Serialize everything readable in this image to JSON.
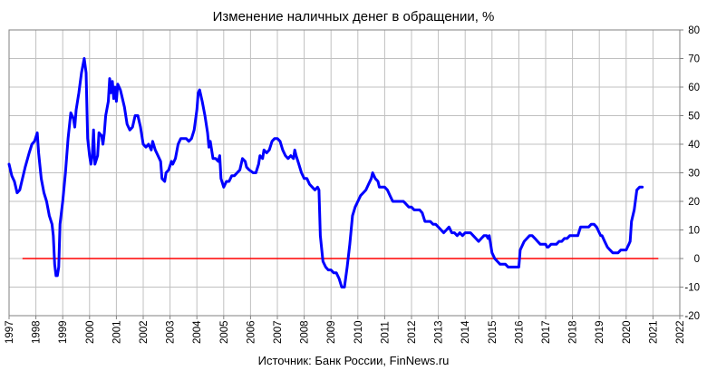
{
  "chart_data": {
    "type": "line",
    "title": "Изменение наличных денег в обращении, %",
    "source": "Источник: Банк России, FinNews.ru",
    "xlabel": "",
    "ylabel": "",
    "x_ticks": [
      "1997",
      "1998",
      "1999",
      "2000",
      "2001",
      "2002",
      "2003",
      "2004",
      "2005",
      "2006",
      "2007",
      "2008",
      "2009",
      "2010",
      "2011",
      "2012",
      "2013",
      "2014",
      "2015",
      "2016",
      "2017",
      "2018",
      "2019",
      "2020",
      "2021",
      "2022"
    ],
    "xlim": [
      1997,
      2022
    ],
    "ylim": [
      -20,
      80
    ],
    "y_ticks": [
      80,
      70,
      60,
      50,
      40,
      30,
      20,
      10,
      0,
      -10,
      -20
    ],
    "grid": true,
    "legend": "none",
    "colors": {
      "series": "#0000ff",
      "zero_line": "#ff0000",
      "grid": "#c0c0c0"
    },
    "series": [
      {
        "points": [
          [
            1997.0,
            33
          ],
          [
            1997.1,
            29
          ],
          [
            1997.2,
            27
          ],
          [
            1997.3,
            23
          ],
          [
            1997.4,
            24
          ],
          [
            1997.5,
            28
          ],
          [
            1997.6,
            32
          ],
          [
            1997.75,
            37
          ],
          [
            1997.85,
            40
          ],
          [
            1997.95,
            41
          ],
          [
            1998.05,
            44
          ],
          [
            1998.1,
            37
          ],
          [
            1998.2,
            28
          ],
          [
            1998.3,
            23
          ],
          [
            1998.4,
            20
          ],
          [
            1998.5,
            15
          ],
          [
            1998.6,
            12
          ],
          [
            1998.65,
            8
          ],
          [
            1998.7,
            -2
          ],
          [
            1998.75,
            -6
          ],
          [
            1998.8,
            -6
          ],
          [
            1998.85,
            -3
          ],
          [
            1998.9,
            12
          ],
          [
            1999.0,
            20
          ],
          [
            1999.1,
            30
          ],
          [
            1999.2,
            42
          ],
          [
            1999.3,
            51
          ],
          [
            1999.4,
            49
          ],
          [
            1999.45,
            46
          ],
          [
            1999.5,
            52
          ],
          [
            1999.6,
            58
          ],
          [
            1999.7,
            65
          ],
          [
            1999.8,
            70
          ],
          [
            1999.87,
            65
          ],
          [
            1999.93,
            42
          ],
          [
            2000.0,
            36
          ],
          [
            2000.05,
            33
          ],
          [
            2000.1,
            36
          ],
          [
            2000.15,
            45
          ],
          [
            2000.2,
            33
          ],
          [
            2000.3,
            36
          ],
          [
            2000.35,
            44
          ],
          [
            2000.45,
            43
          ],
          [
            2000.5,
            40
          ],
          [
            2000.55,
            44
          ],
          [
            2000.6,
            50
          ],
          [
            2000.7,
            55
          ],
          [
            2000.75,
            63
          ],
          [
            2000.8,
            58
          ],
          [
            2000.85,
            62
          ],
          [
            2000.9,
            56
          ],
          [
            2000.95,
            60
          ],
          [
            2001.0,
            55
          ],
          [
            2001.05,
            61
          ],
          [
            2001.15,
            59
          ],
          [
            2001.2,
            57
          ],
          [
            2001.3,
            53
          ],
          [
            2001.4,
            47
          ],
          [
            2001.5,
            45
          ],
          [
            2001.6,
            46
          ],
          [
            2001.7,
            50
          ],
          [
            2001.8,
            50
          ],
          [
            2001.9,
            46
          ],
          [
            2002.0,
            40
          ],
          [
            2002.1,
            39
          ],
          [
            2002.2,
            40
          ],
          [
            2002.3,
            38
          ],
          [
            2002.35,
            41
          ],
          [
            2002.45,
            38
          ],
          [
            2002.55,
            36
          ],
          [
            2002.65,
            34
          ],
          [
            2002.7,
            28
          ],
          [
            2002.8,
            27
          ],
          [
            2002.85,
            30
          ],
          [
            2002.95,
            31
          ],
          [
            2003.05,
            34
          ],
          [
            2003.1,
            33
          ],
          [
            2003.2,
            35
          ],
          [
            2003.3,
            40
          ],
          [
            2003.4,
            42
          ],
          [
            2003.5,
            42
          ],
          [
            2003.6,
            42
          ],
          [
            2003.7,
            41
          ],
          [
            2003.8,
            42
          ],
          [
            2003.9,
            45
          ],
          [
            2004.0,
            52
          ],
          [
            2004.05,
            58
          ],
          [
            2004.1,
            59
          ],
          [
            2004.2,
            55
          ],
          [
            2004.3,
            50
          ],
          [
            2004.4,
            44
          ],
          [
            2004.45,
            39
          ],
          [
            2004.5,
            41
          ],
          [
            2004.55,
            38
          ],
          [
            2004.6,
            35
          ],
          [
            2004.7,
            35
          ],
          [
            2004.8,
            34
          ],
          [
            2004.85,
            36
          ],
          [
            2004.9,
            28
          ],
          [
            2005.0,
            25
          ],
          [
            2005.1,
            27
          ],
          [
            2005.2,
            27
          ],
          [
            2005.3,
            29
          ],
          [
            2005.4,
            29
          ],
          [
            2005.5,
            30
          ],
          [
            2005.6,
            31
          ],
          [
            2005.7,
            35
          ],
          [
            2005.8,
            34
          ],
          [
            2005.85,
            32
          ],
          [
            2005.95,
            31
          ],
          [
            2006.1,
            30
          ],
          [
            2006.2,
            30
          ],
          [
            2006.3,
            33
          ],
          [
            2006.35,
            36
          ],
          [
            2006.45,
            35
          ],
          [
            2006.5,
            38
          ],
          [
            2006.6,
            37
          ],
          [
            2006.7,
            38
          ],
          [
            2006.8,
            41
          ],
          [
            2006.9,
            42
          ],
          [
            2007.0,
            42
          ],
          [
            2007.1,
            41
          ],
          [
            2007.2,
            38
          ],
          [
            2007.3,
            36
          ],
          [
            2007.4,
            35
          ],
          [
            2007.5,
            36
          ],
          [
            2007.6,
            35
          ],
          [
            2007.65,
            38
          ],
          [
            2007.7,
            36
          ],
          [
            2007.8,
            33
          ],
          [
            2007.9,
            30
          ],
          [
            2008.0,
            28
          ],
          [
            2008.1,
            28
          ],
          [
            2008.2,
            26
          ],
          [
            2008.3,
            25
          ],
          [
            2008.4,
            24
          ],
          [
            2008.5,
            25
          ],
          [
            2008.55,
            24
          ],
          [
            2008.6,
            8
          ],
          [
            2008.7,
            -1
          ],
          [
            2008.8,
            -3
          ],
          [
            2008.9,
            -4
          ],
          [
            2009.0,
            -4
          ],
          [
            2009.1,
            -5
          ],
          [
            2009.2,
            -5
          ],
          [
            2009.3,
            -7
          ],
          [
            2009.4,
            -10
          ],
          [
            2009.5,
            -10
          ],
          [
            2009.6,
            -3
          ],
          [
            2009.7,
            5
          ],
          [
            2009.75,
            10
          ],
          [
            2009.8,
            15
          ],
          [
            2009.9,
            18
          ],
          [
            2010.0,
            20
          ],
          [
            2010.1,
            22
          ],
          [
            2010.2,
            23
          ],
          [
            2010.3,
            24
          ],
          [
            2010.4,
            26
          ],
          [
            2010.5,
            28
          ],
          [
            2010.55,
            30
          ],
          [
            2010.65,
            28
          ],
          [
            2010.75,
            27
          ],
          [
            2010.8,
            25
          ],
          [
            2010.9,
            25
          ],
          [
            2011.0,
            25
          ],
          [
            2011.1,
            24
          ],
          [
            2011.2,
            22
          ],
          [
            2011.3,
            20
          ],
          [
            2011.4,
            20
          ],
          [
            2011.5,
            20
          ],
          [
            2011.6,
            20
          ],
          [
            2011.7,
            20
          ],
          [
            2011.8,
            19
          ],
          [
            2011.9,
            18
          ],
          [
            2012.0,
            18
          ],
          [
            2012.1,
            17
          ],
          [
            2012.2,
            17
          ],
          [
            2012.3,
            17
          ],
          [
            2012.4,
            16
          ],
          [
            2012.5,
            13
          ],
          [
            2012.6,
            13
          ],
          [
            2012.7,
            13
          ],
          [
            2012.8,
            12
          ],
          [
            2012.9,
            12
          ],
          [
            2013.0,
            11
          ],
          [
            2013.1,
            10
          ],
          [
            2013.2,
            9
          ],
          [
            2013.3,
            10
          ],
          [
            2013.4,
            11
          ],
          [
            2013.5,
            9
          ],
          [
            2013.6,
            9
          ],
          [
            2013.7,
            8
          ],
          [
            2013.8,
            9
          ],
          [
            2013.9,
            8
          ],
          [
            2014.0,
            9
          ],
          [
            2014.1,
            9
          ],
          [
            2014.2,
            9
          ],
          [
            2014.3,
            8
          ],
          [
            2014.4,
            7
          ],
          [
            2014.5,
            6
          ],
          [
            2014.6,
            7
          ],
          [
            2014.7,
            8
          ],
          [
            2014.8,
            8
          ],
          [
            2014.85,
            7
          ],
          [
            2014.9,
            8
          ],
          [
            2015.0,
            2
          ],
          [
            2015.1,
            0
          ],
          [
            2015.2,
            -1
          ],
          [
            2015.3,
            -2
          ],
          [
            2015.4,
            -2
          ],
          [
            2015.5,
            -2
          ],
          [
            2015.6,
            -3
          ],
          [
            2015.7,
            -3
          ],
          [
            2015.8,
            -3
          ],
          [
            2015.9,
            -3
          ],
          [
            2016.0,
            -3
          ],
          [
            2016.05,
            3
          ],
          [
            2016.1,
            4
          ],
          [
            2016.2,
            6
          ],
          [
            2016.3,
            7
          ],
          [
            2016.4,
            8
          ],
          [
            2016.5,
            8
          ],
          [
            2016.6,
            7
          ],
          [
            2016.7,
            6
          ],
          [
            2016.8,
            5
          ],
          [
            2016.9,
            5
          ],
          [
            2017.0,
            5
          ],
          [
            2017.05,
            4
          ],
          [
            2017.1,
            4
          ],
          [
            2017.2,
            5
          ],
          [
            2017.3,
            5
          ],
          [
            2017.4,
            5
          ],
          [
            2017.5,
            6
          ],
          [
            2017.6,
            6
          ],
          [
            2017.7,
            7
          ],
          [
            2017.8,
            7
          ],
          [
            2017.9,
            8
          ],
          [
            2018.0,
            8
          ],
          [
            2018.1,
            8
          ],
          [
            2018.2,
            8
          ],
          [
            2018.3,
            11
          ],
          [
            2018.4,
            11
          ],
          [
            2018.5,
            11
          ],
          [
            2018.6,
            11
          ],
          [
            2018.7,
            12
          ],
          [
            2018.8,
            12
          ],
          [
            2018.9,
            11
          ],
          [
            2019.0,
            9
          ],
          [
            2019.05,
            8
          ],
          [
            2019.1,
            8
          ],
          [
            2019.2,
            6
          ],
          [
            2019.3,
            4
          ],
          [
            2019.4,
            3
          ],
          [
            2019.5,
            2
          ],
          [
            2019.6,
            2
          ],
          [
            2019.7,
            2
          ],
          [
            2019.8,
            3
          ],
          [
            2019.9,
            3
          ],
          [
            2020.0,
            3
          ],
          [
            2020.05,
            4
          ],
          [
            2020.1,
            5
          ],
          [
            2020.15,
            6
          ],
          [
            2020.2,
            13
          ],
          [
            2020.3,
            17
          ],
          [
            2020.4,
            24
          ],
          [
            2020.5,
            25
          ],
          [
            2020.6,
            25
          ]
        ]
      }
    ],
    "reference_line": {
      "y": 0,
      "x_start": 1997.5,
      "x_end": 2021.2
    }
  }
}
